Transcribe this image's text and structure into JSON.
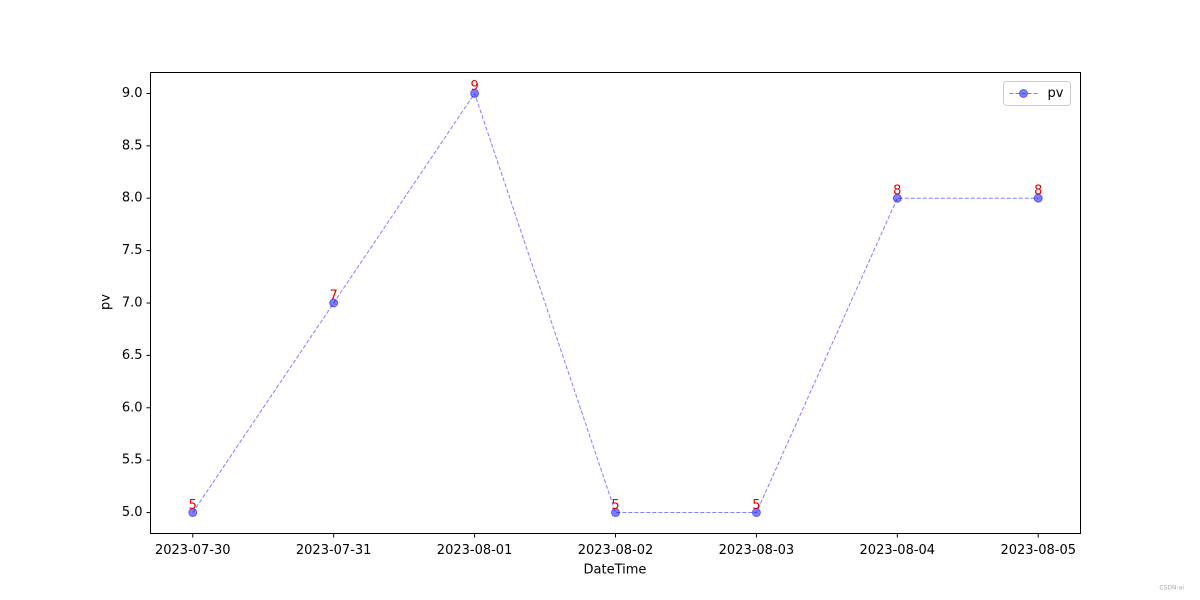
{
  "chart_data": {
    "type": "line",
    "categories": [
      "2023-07-30",
      "2023-07-31",
      "2023-08-01",
      "2023-08-02",
      "2023-08-03",
      "2023-08-04",
      "2023-08-05"
    ],
    "series": [
      {
        "name": "pv",
        "color": "#0000ff",
        "values": [
          5,
          7,
          9,
          5,
          5,
          8,
          8
        ]
      }
    ],
    "ylim": [
      4.8,
      9.2
    ],
    "yticks": [
      {
        "value": 5,
        "label": "5.0"
      },
      {
        "value": 5.5,
        "label": "5.5"
      },
      {
        "value": 6,
        "label": "6.0"
      },
      {
        "value": 6.5,
        "label": "6.5"
      },
      {
        "value": 7,
        "label": "7.0"
      },
      {
        "value": 7.5,
        "label": "7.5"
      },
      {
        "value": 8,
        "label": "8.0"
      },
      {
        "value": 8.5,
        "label": "8.5"
      },
      {
        "value": 9,
        "label": "9.0"
      }
    ],
    "x_label": "DateTime",
    "y_label": "pv",
    "legend": "upper right",
    "grid": false,
    "watermark": "CSDN-ai"
  }
}
